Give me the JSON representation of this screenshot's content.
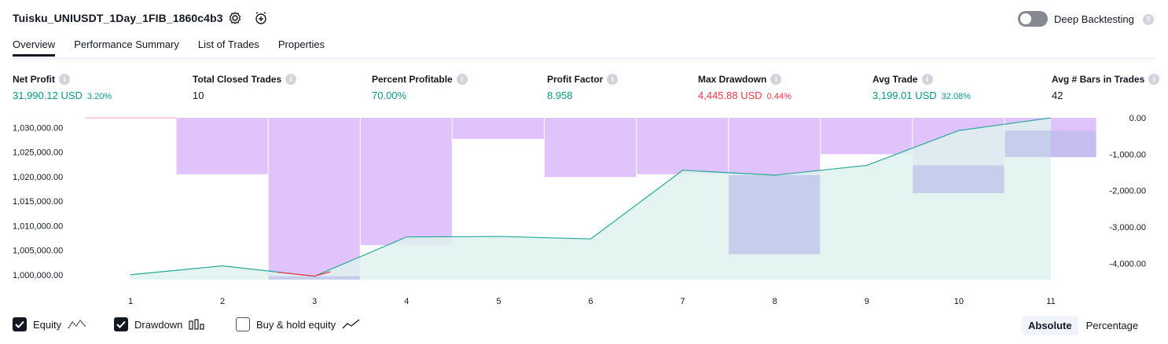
{
  "header": {
    "title": "Tuisku_UNIUSDT_1Day_1FIB_1860c4b3",
    "settings_icon": "gear-icon",
    "alert_icon": "alarm-clock-plus-icon",
    "deep_backtesting_label": "Deep Backtesting",
    "deep_backtesting_enabled": false
  },
  "tabs": [
    {
      "label": "Overview",
      "active": true
    },
    {
      "label": "Performance Summary",
      "active": false
    },
    {
      "label": "List of Trades",
      "active": false
    },
    {
      "label": "Properties",
      "active": false
    }
  ],
  "metrics": [
    {
      "label": "Net Profit",
      "value": "31,990.12 USD",
      "pct": "3.20%",
      "color": "#089981"
    },
    {
      "label": "Total Closed Trades",
      "value": "10",
      "pct": "",
      "color": "#131722"
    },
    {
      "label": "Percent Profitable",
      "value": "70.00%",
      "pct": "",
      "color": "#089981"
    },
    {
      "label": "Profit Factor",
      "value": "8.958",
      "pct": "",
      "color": "#089981"
    },
    {
      "label": "Max Drawdown",
      "value": "4,445.88 USD",
      "pct": "0.44%",
      "color": "#f23645"
    },
    {
      "label": "Avg Trade",
      "value": "3,199.01 USD",
      "pct": "32.08%",
      "color": "#089981"
    },
    {
      "label": "Avg # Bars in Trades",
      "value": "42",
      "pct": "",
      "color": "#131722"
    }
  ],
  "chart_data": {
    "type": "area",
    "x": [
      1,
      2,
      3,
      4,
      5,
      6,
      7,
      8,
      9,
      10,
      11
    ],
    "series": [
      {
        "values": [
          1000000,
          1001800,
          999700,
          1007700,
          1007800,
          1007300,
          1021300,
          1020300,
          1022300,
          1029400,
          1031990
        ]
      },
      {
        "values": [
          0,
          -1550,
          -4445.88,
          -3500,
          -580,
          -1630,
          -1550,
          -3750,
          -1000,
          -2070,
          -1080
        ]
      }
    ],
    "left_axis": {
      "ticks": [
        "1,000,000.00",
        "1,005,000.00",
        "1,010,000.00",
        "1,015,000.00",
        "1,020,000.00",
        "1,025,000.00",
        "1,030,000.00"
      ],
      "range": [
        999000,
        1032000
      ]
    },
    "right_axis": {
      "ticks": [
        "0.00",
        "-1,000.00",
        "-2,000.00",
        "-3,000.00",
        "-4,000.00"
      ],
      "range": [
        -4445.88,
        0
      ]
    },
    "colors": {
      "equity_line": "#22ab94",
      "equity_fill": "#dff2ee",
      "drawdown": "#e1c3fc",
      "overlap": "#b3b6e6",
      "negative_equity": "#f23645"
    }
  },
  "legend": [
    {
      "label": "Equity",
      "checked": true,
      "icon": "equity-line-icon"
    },
    {
      "label": "Drawdown",
      "checked": true,
      "icon": "drawdown-bars-icon"
    },
    {
      "label": "Buy & hold equity",
      "checked": false,
      "icon": "trend-line-icon"
    }
  ],
  "view_modes": [
    {
      "label": "Absolute",
      "active": true
    },
    {
      "label": "Percentage",
      "active": false
    }
  ]
}
